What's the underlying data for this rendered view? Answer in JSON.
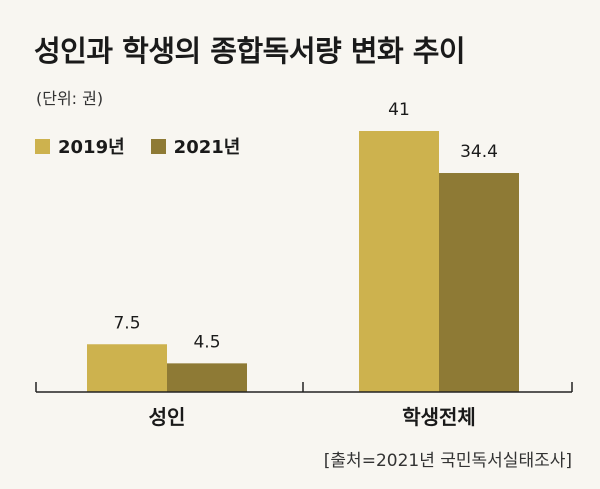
{
  "title": "성인과 학생의 종합독서량 변화 추이",
  "unit": "(단위: 권)",
  "source": "[출처=2021년 국민독서실태조사]",
  "colors": {
    "series_2019": "#cdb24e",
    "series_2021": "#8e7a35",
    "axis": "#222222",
    "background": "#f8f6f1"
  },
  "chart_data": {
    "type": "bar",
    "categories": [
      "성인",
      "학생전체"
    ],
    "series": [
      {
        "name": "2019년",
        "values": [
          7.5,
          41
        ]
      },
      {
        "name": "2021년",
        "values": [
          4.5,
          34.4
        ]
      }
    ],
    "value_labels": [
      [
        "7.5",
        "41"
      ],
      [
        "4.5",
        "34.4"
      ]
    ],
    "ylim": [
      0,
      41
    ],
    "grid": false,
    "legend_position": "top-left"
  }
}
